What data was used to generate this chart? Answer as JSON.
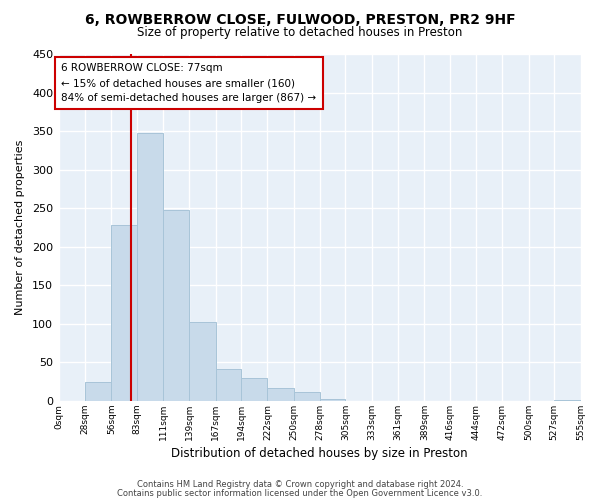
{
  "title1": "6, ROWBERROW CLOSE, FULWOOD, PRESTON, PR2 9HF",
  "title2": "Size of property relative to detached houses in Preston",
  "xlabel": "Distribution of detached houses by size in Preston",
  "ylabel": "Number of detached properties",
  "bar_edges": [
    0,
    28,
    56,
    83,
    111,
    139,
    167,
    194,
    222,
    250,
    278,
    305,
    333,
    361,
    389,
    416,
    444,
    472,
    500,
    527,
    555
  ],
  "bar_heights": [
    0,
    25,
    228,
    347,
    247,
    102,
    41,
    30,
    17,
    11,
    2,
    0,
    0,
    0,
    0,
    0,
    0,
    0,
    0,
    1
  ],
  "bar_color": "#c8daea",
  "bar_edge_color": "#a8c4d8",
  "vline_x": 77,
  "vline_color": "#cc0000",
  "annotation_line1": "6 ROWBERROW CLOSE: 77sqm",
  "annotation_line2": "← 15% of detached houses are smaller (160)",
  "annotation_line3": "84% of semi-detached houses are larger (867) →",
  "annotation_box_color": "white",
  "annotation_box_edgecolor": "#cc0000",
  "ylim": [
    0,
    450
  ],
  "yticks": [
    0,
    50,
    100,
    150,
    200,
    250,
    300,
    350,
    400,
    450
  ],
  "xtick_labels": [
    "0sqm",
    "28sqm",
    "56sqm",
    "83sqm",
    "111sqm",
    "139sqm",
    "167sqm",
    "194sqm",
    "222sqm",
    "250sqm",
    "278sqm",
    "305sqm",
    "333sqm",
    "361sqm",
    "389sqm",
    "416sqm",
    "444sqm",
    "472sqm",
    "500sqm",
    "527sqm",
    "555sqm"
  ],
  "footer1": "Contains HM Land Registry data © Crown copyright and database right 2024.",
  "footer2": "Contains public sector information licensed under the Open Government Licence v3.0.",
  "background_color": "#ffffff",
  "plot_bg_color": "#e8f0f8",
  "grid_color": "#ffffff"
}
